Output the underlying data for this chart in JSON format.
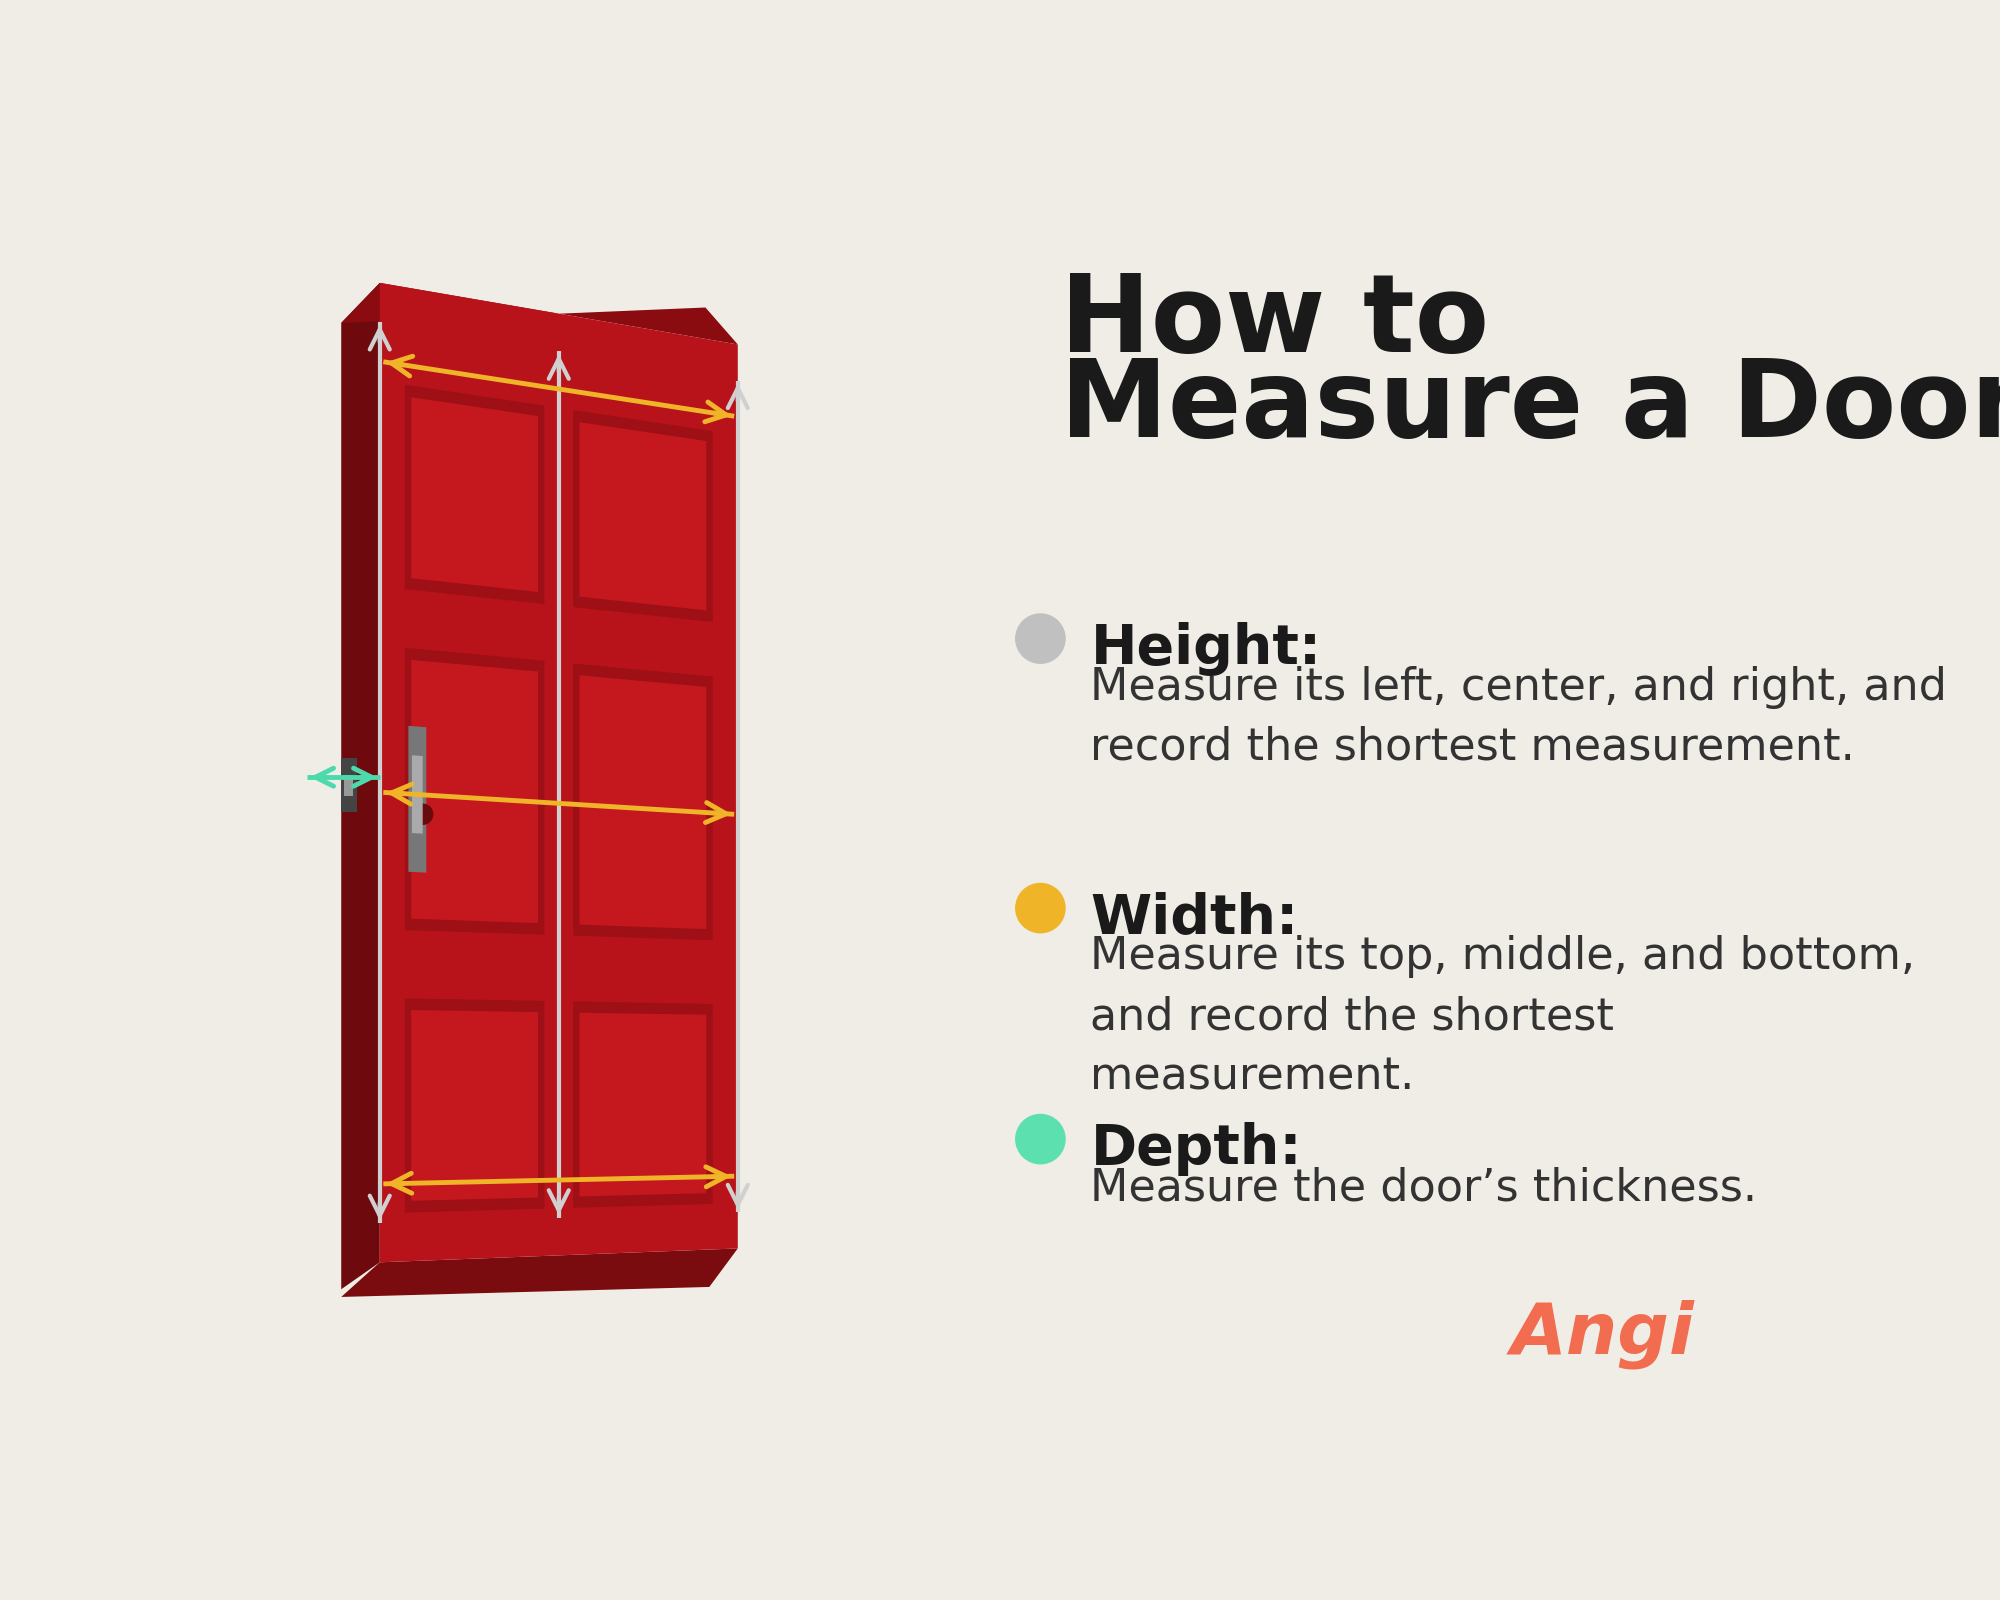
{
  "background_color": "#f0ede6",
  "title_line1": "How to",
  "title_line2": "Measure a Door",
  "title_color": "#1a1a1a",
  "title_fontsize": 78,
  "items": [
    {
      "label": "Height:",
      "description": "Measure its left, center, and right, and\nrecord the shortest measurement.",
      "circle_color": "#c0c0c0"
    },
    {
      "label": "Width:",
      "description": "Measure its top, middle, and bottom,\nand record the shortest\nmeasurement.",
      "circle_color": "#f0b429"
    },
    {
      "label": "Depth:",
      "description": "Measure the door’s thickness.",
      "circle_color": "#5de0b0"
    }
  ],
  "label_fontsize": 40,
  "desc_fontsize": 32,
  "label_color": "#1a1a1a",
  "desc_color": "#333333",
  "angi_color": "#f26c4f",
  "angi_fontsize": 52,
  "door": {
    "main_color": "#b8131a",
    "dark_color": "#8a0c10",
    "mid_color": "#a01015",
    "light_color": "#cc1c22",
    "panel_outer": "#9e1015",
    "panel_inner": "#c4181e",
    "side_color": "#6e0a0d",
    "bottom_color": "#7a0c0f",
    "arrow_white": "#d0d0d0",
    "arrow_yellow": "#f0b429",
    "arrow_cyan": "#4dd9ac"
  }
}
